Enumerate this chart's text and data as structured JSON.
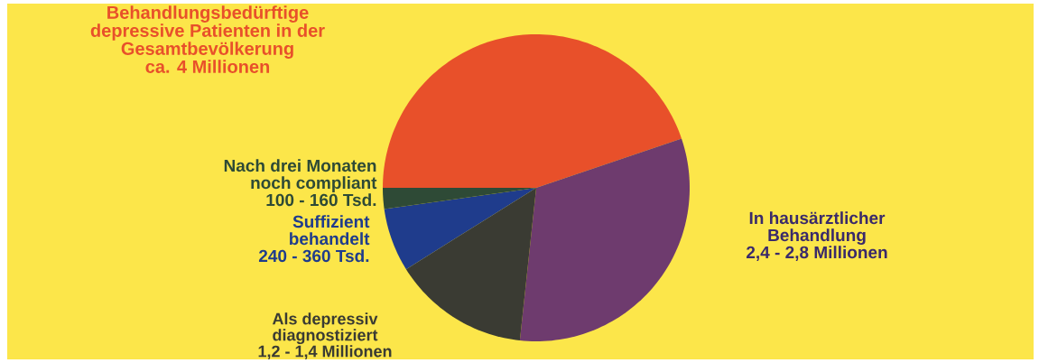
{
  "chart_data": {
    "type": "pie",
    "categories": [
      "Behandlungsbedürftige depressive Patienten in der Gesamtbevölkerung",
      "In hausärztlicher Behandlung",
      "Als depressiv diagnostiziert",
      "Suffizient behandelt",
      "Nach drei Monaten noch compliant"
    ],
    "values": [
      44.8,
      31.9,
      14.4,
      6.7,
      2.2
    ],
    "annotations": [
      "ca. 4 Millionen",
      "2,4 - 2,8 Millionen",
      "1,2 - 1,4 Millionen",
      "240 - 360 Tsd.",
      "100 - 160 Tsd."
    ],
    "colors": [
      "#e8502a",
      "#6e3b6e",
      "#3a3b33",
      "#1f3c8c",
      "#2e4a36"
    ]
  }
}
